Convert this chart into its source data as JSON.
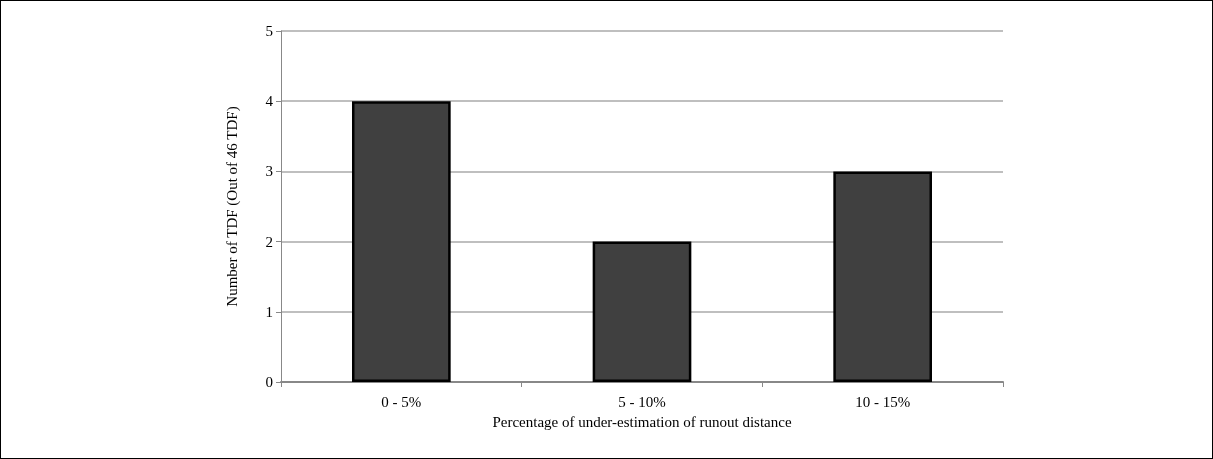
{
  "chart_data": {
    "type": "bar",
    "xlabel": "Percentage of under-estimation of runout distance",
    "ylabel": "Number of TDF (Out of 46 TDF)",
    "categories": [
      "0 - 5%",
      "5 - 10%",
      "10 - 15%"
    ],
    "values": [
      4,
      2,
      3
    ],
    "color": "#404040",
    "ylim": [
      0,
      5
    ],
    "yticks": [
      0,
      1,
      2,
      3,
      4,
      5
    ],
    "grid": "y"
  }
}
